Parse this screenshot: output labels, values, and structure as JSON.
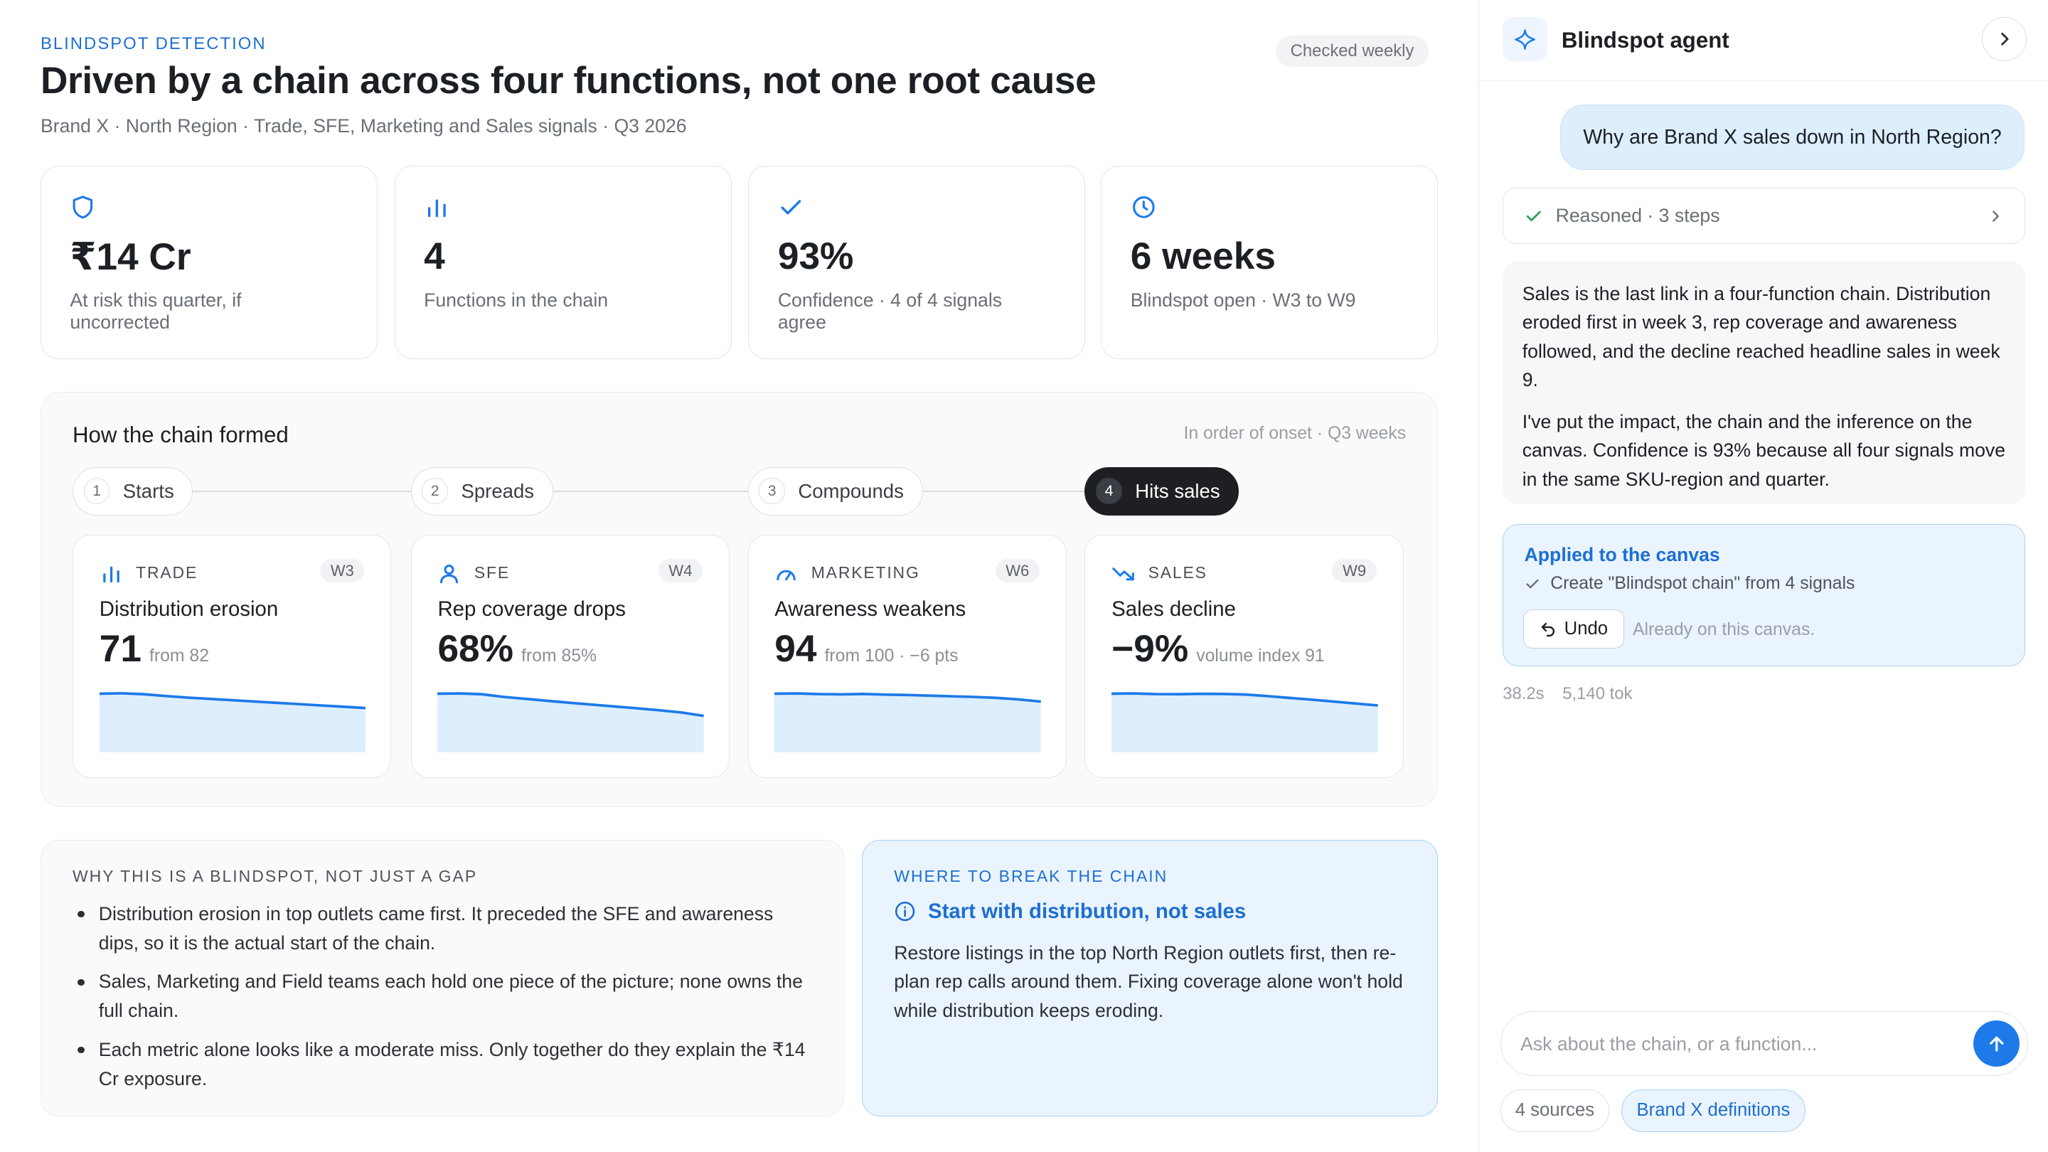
{
  "header": {
    "eyebrow": "BLINDSPOT DETECTION",
    "title": "Driven by a chain across four functions, not one root cause",
    "subtitle": "Brand X · North Region · Trade, SFE, Marketing and Sales signals · Q3 2026",
    "status_pill": "Checked weekly"
  },
  "kpis": [
    {
      "icon": "shield-icon",
      "value": "₹14 Cr",
      "label": "At risk this quarter, if uncorrected"
    },
    {
      "icon": "bar-chart-icon",
      "value": "4",
      "label": "Functions in the chain"
    },
    {
      "icon": "check-icon",
      "value": "93%",
      "label": "Confidence · 4 of 4 signals agree"
    },
    {
      "icon": "clock-icon",
      "value": "6 weeks",
      "label": "Blindspot open · W3 to W9"
    }
  ],
  "chain": {
    "title": "How the chain formed",
    "note": "In order of onset · Q3 weeks",
    "steps": [
      {
        "num": "1",
        "label": "Starts"
      },
      {
        "num": "2",
        "label": "Spreads"
      },
      {
        "num": "3",
        "label": "Compounds"
      },
      {
        "num": "4",
        "label": "Hits sales",
        "active": true
      }
    ],
    "functions": [
      {
        "icon": "bar-chart-icon",
        "name": "TRADE",
        "week": "W3",
        "title": "Distribution erosion",
        "value": "71",
        "sub": "from 82",
        "trend": [
          82,
          82.3,
          81.6,
          80.2,
          79,
          78,
          77,
          76,
          75,
          74,
          73,
          72,
          71
        ]
      },
      {
        "icon": "person-icon",
        "name": "SFE",
        "week": "W4",
        "title": "Rep coverage drops",
        "value": "68%",
        "sub": "from 85%",
        "trend": [
          85,
          85.2,
          84.6,
          82.5,
          81,
          79.5,
          78,
          76.6,
          75.2,
          73.8,
          72.3,
          70.6,
          68
        ]
      },
      {
        "icon": "gauge-icon",
        "name": "MARKETING",
        "week": "W6",
        "title": "Awareness weakens",
        "value": "94",
        "sub": "from 100 · −6 pts",
        "trend": [
          100,
          100.2,
          99.7,
          99.5,
          99.8,
          99.3,
          99,
          98.5,
          98,
          97.5,
          96.8,
          95.6,
          94
        ]
      },
      {
        "icon": "trend-down-icon",
        "name": "SALES",
        "week": "W9",
        "title": "Sales decline",
        "value": "−9%",
        "sub": "volume index 91",
        "trend": [
          100,
          100.2,
          99.7,
          99.6,
          99.9,
          99.8,
          99.4,
          98.2,
          96.8,
          95.5,
          94,
          92.5,
          91
        ]
      }
    ]
  },
  "why": {
    "heading": "WHY THIS IS A BLINDSPOT, NOT JUST A GAP",
    "bullets": [
      "Distribution erosion in top outlets came first. It preceded the SFE and awareness dips, so it is the actual start of the chain.",
      "Sales, Marketing and Field teams each hold one piece of the picture; none owns the full chain.",
      "Each metric alone looks like a moderate miss. Only together do they explain the ₹14 Cr exposure."
    ]
  },
  "break": {
    "heading": "WHERE TO BREAK THE CHAIN",
    "title": "Start with distribution, not sales",
    "body": "Restore listings in the top North Region outlets first, then re-plan rep calls around them. Fixing coverage alone won't hold while distribution keeps eroding."
  },
  "agent": {
    "name": "Blindspot agent",
    "user_message": "Why are Brand X sales down in North Region?",
    "reasoned": "Reasoned · 3 steps",
    "answer_p1": "Sales is the last link in a four-function chain. Distribution eroded first in week 3, rep coverage and awareness followed, and the decline reached headline sales in week 9.",
    "answer_p2": "I've put the impact, the chain and the inference on the canvas. Confidence is 93% because all four signals move in the same SKU-region and quarter.",
    "applied_title": "Applied to the canvas",
    "applied_item": "Create \"Blindspot chain\" from 4 signals",
    "undo_label": "Undo",
    "already_note": "Already on this canvas.",
    "time": "38.2s",
    "tokens": "5,140 tok",
    "input_placeholder": "Ask about the chain, or a function...",
    "chips": [
      "4 sources",
      "Brand X definitions"
    ]
  },
  "colors": {
    "accent": "#1d7ae8",
    "success": "#2aa35a",
    "spark_fill": "#ddeefd"
  }
}
